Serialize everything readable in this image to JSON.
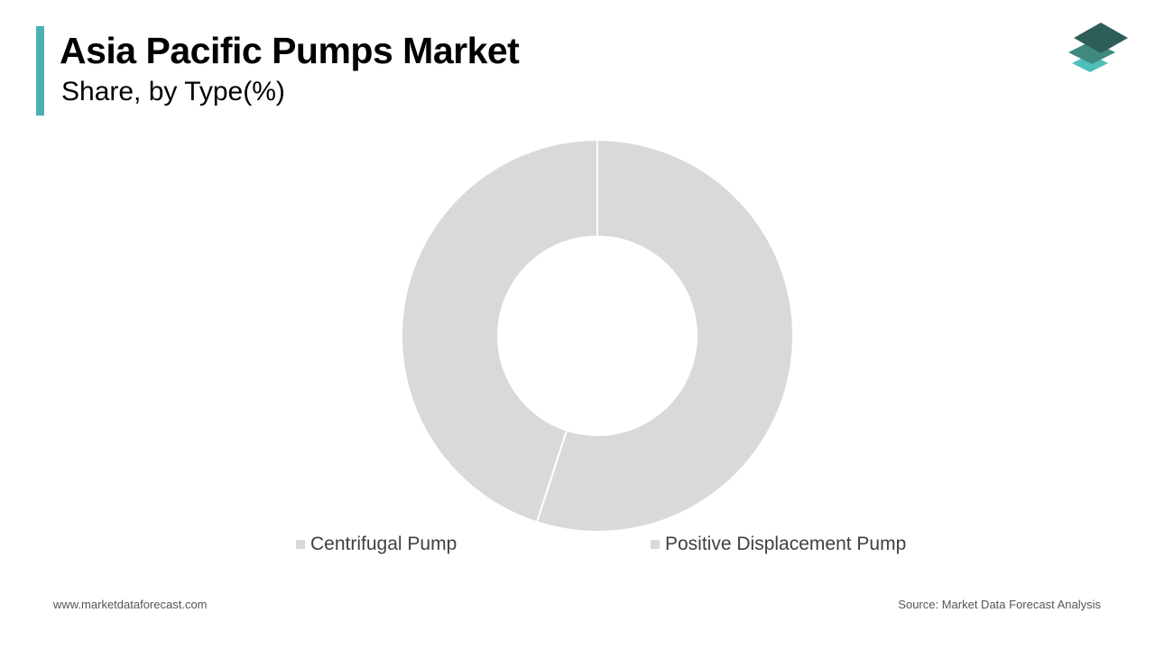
{
  "header": {
    "title": "Asia Pacific Pumps Market",
    "subtitle": "Share, by Type(%)"
  },
  "colors": {
    "accent": "#4dafb0",
    "slice": "#d9d9d9",
    "logo_dark": "#2e5e58",
    "logo_mid": "#3e8a80",
    "logo_light": "#4dbfb8"
  },
  "chart_data": {
    "type": "pie",
    "donut": true,
    "title": "",
    "categories": [
      "Centrifugal Pump",
      "Positive Displacement Pump"
    ],
    "values": [
      45,
      55
    ],
    "legend_position": "bottom"
  },
  "footer": {
    "website": "www.marketdataforecast.com",
    "source": "Source: Market Data Forecast Analysis"
  }
}
